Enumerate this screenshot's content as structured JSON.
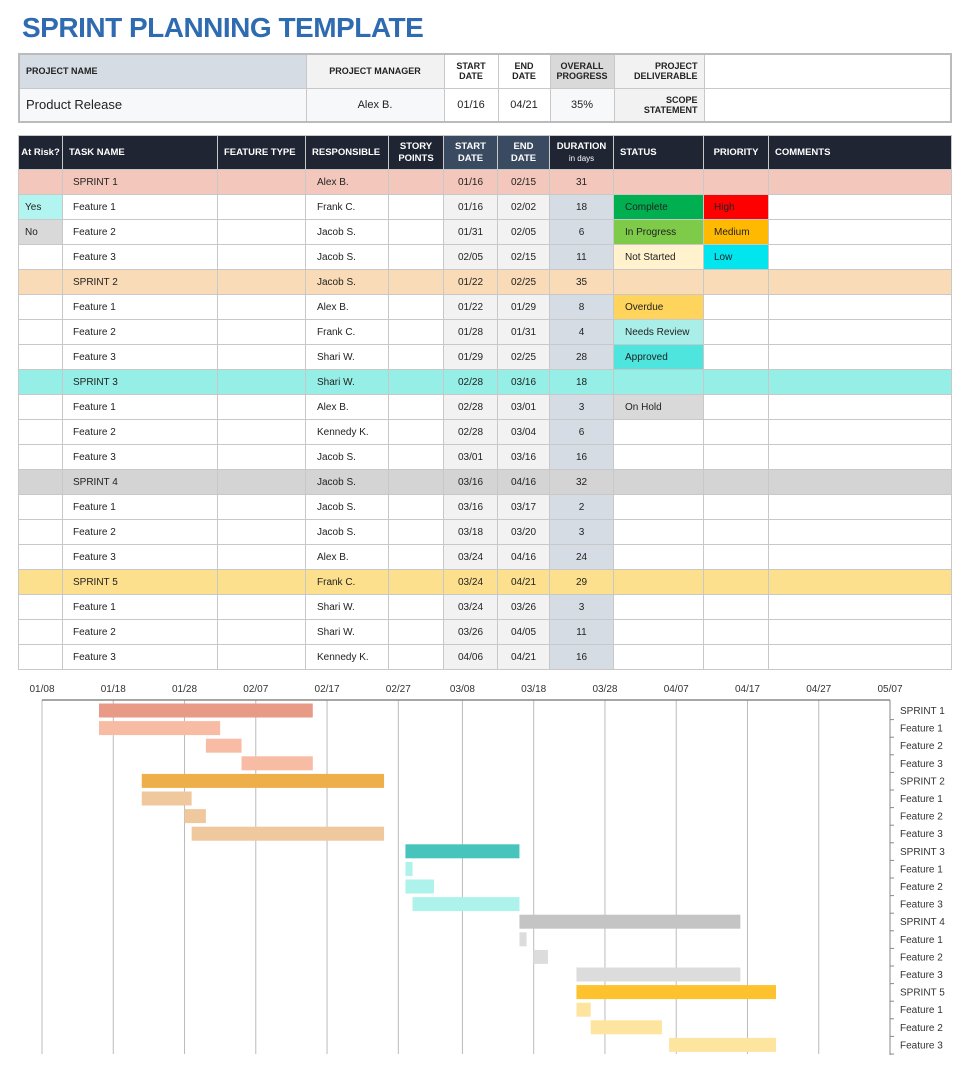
{
  "title": "SPRINT PLANNING TEMPLATE",
  "project": {
    "labels": {
      "name": "PROJECT NAME",
      "manager": "PROJECT MANAGER",
      "start": "START DATE",
      "end": "END DATE",
      "progress": "OVERALL PROGRESS",
      "deliverable": "PROJECT DELIVERABLE",
      "scope": "SCOPE STATEMENT"
    },
    "name": "Product Release",
    "manager": "Alex B.",
    "start": "01/16",
    "end": "04/21",
    "progress": "35%",
    "deliverable": "",
    "scope": ""
  },
  "columns": [
    "At Risk?",
    "TASK NAME",
    "FEATURE TYPE",
    "RESPONSIBLE",
    "STORY POINTS",
    "START DATE",
    "END DATE",
    "DURATION",
    "in days",
    "STATUS",
    "PRIORITY",
    "COMMENTS"
  ],
  "colors": {
    "sprints": [
      {
        "row": "#f4c7bc",
        "bar": "#e89a87",
        "feat": "#f8bba3"
      },
      {
        "row": "#f9dbb7",
        "bar": "#eeaf4a",
        "feat": "#f0c89e"
      },
      {
        "row": "#96efe6",
        "bar": "#47c4bb",
        "feat": "#adf2eb"
      },
      {
        "row": "#d4d4d4",
        "bar": "#c4c4c4",
        "feat": "#dcdcdc"
      },
      {
        "row": "#fde08e",
        "bar": "#fdc22e",
        "feat": "#fde59f"
      }
    ],
    "status": {
      "Complete": "#00b050",
      "In Progress": "#7ecb4a",
      "Not Started": "#fff2cc",
      "Overdue": "#ffd45c",
      "Needs Review": "#a9eee9",
      "Approved": "#4de5de",
      "On Hold": "#d9d9d9"
    },
    "priority": {
      "High": "#ff0000",
      "Medium": "#ffb900",
      "Low": "#00e5ee"
    },
    "risk": {
      "Yes": "#b2f5f0",
      "No": "#d9d9d9"
    }
  },
  "rows": [
    {
      "sprint": 0,
      "is_sprint": true,
      "risk": "",
      "task": "SPRINT 1",
      "type": "",
      "resp": "Alex B.",
      "points": "",
      "start": "01/16",
      "end": "02/15",
      "dur": "31",
      "status": "",
      "priority": "",
      "comments": ""
    },
    {
      "sprint": 0,
      "risk": "Yes",
      "task": "Feature 1",
      "type": "",
      "resp": "Frank C.",
      "points": "",
      "start": "01/16",
      "end": "02/02",
      "dur": "18",
      "status": "Complete",
      "priority": "High",
      "comments": ""
    },
    {
      "sprint": 0,
      "risk": "No",
      "task": "Feature 2",
      "type": "",
      "resp": "Jacob S.",
      "points": "",
      "start": "01/31",
      "end": "02/05",
      "dur": "6",
      "status": "In Progress",
      "priority": "Medium",
      "comments": ""
    },
    {
      "sprint": 0,
      "risk": "",
      "task": "Feature 3",
      "type": "",
      "resp": "Jacob S.",
      "points": "",
      "start": "02/05",
      "end": "02/15",
      "dur": "11",
      "status": "Not Started",
      "priority": "Low",
      "comments": ""
    },
    {
      "sprint": 1,
      "is_sprint": true,
      "risk": "",
      "task": "SPRINT 2",
      "type": "",
      "resp": "Jacob S.",
      "points": "",
      "start": "01/22",
      "end": "02/25",
      "dur": "35",
      "status": "",
      "priority": "",
      "comments": ""
    },
    {
      "sprint": 1,
      "risk": "",
      "task": "Feature 1",
      "type": "",
      "resp": "Alex B.",
      "points": "",
      "start": "01/22",
      "end": "01/29",
      "dur": "8",
      "status": "Overdue",
      "priority": "",
      "comments": ""
    },
    {
      "sprint": 1,
      "risk": "",
      "task": "Feature 2",
      "type": "",
      "resp": "Frank C.",
      "points": "",
      "start": "01/28",
      "end": "01/31",
      "dur": "4",
      "status": "Needs Review",
      "priority": "",
      "comments": ""
    },
    {
      "sprint": 1,
      "risk": "",
      "task": "Feature 3",
      "type": "",
      "resp": "Shari W.",
      "points": "",
      "start": "01/29",
      "end": "02/25",
      "dur": "28",
      "status": "Approved",
      "priority": "",
      "comments": ""
    },
    {
      "sprint": 2,
      "is_sprint": true,
      "risk": "",
      "task": "SPRINT 3",
      "type": "",
      "resp": "Shari W.",
      "points": "",
      "start": "02/28",
      "end": "03/16",
      "dur": "18",
      "status": "",
      "priority": "",
      "comments": ""
    },
    {
      "sprint": 2,
      "risk": "",
      "task": "Feature 1",
      "type": "",
      "resp": "Alex B.",
      "points": "",
      "start": "02/28",
      "end": "03/01",
      "dur": "3",
      "status": "On Hold",
      "priority": "",
      "comments": ""
    },
    {
      "sprint": 2,
      "risk": "",
      "task": "Feature 2",
      "type": "",
      "resp": "Kennedy K.",
      "points": "",
      "start": "02/28",
      "end": "03/04",
      "dur": "6",
      "status": "",
      "priority": "",
      "comments": ""
    },
    {
      "sprint": 2,
      "risk": "",
      "task": "Feature 3",
      "type": "",
      "resp": "Jacob S.",
      "points": "",
      "start": "03/01",
      "end": "03/16",
      "dur": "16",
      "status": "",
      "priority": "",
      "comments": ""
    },
    {
      "sprint": 3,
      "is_sprint": true,
      "risk": "",
      "task": "SPRINT 4",
      "type": "",
      "resp": "Jacob S.",
      "points": "",
      "start": "03/16",
      "end": "04/16",
      "dur": "32",
      "status": "",
      "priority": "",
      "comments": ""
    },
    {
      "sprint": 3,
      "risk": "",
      "task": "Feature 1",
      "type": "",
      "resp": "Jacob S.",
      "points": "",
      "start": "03/16",
      "end": "03/17",
      "dur": "2",
      "status": "",
      "priority": "",
      "comments": ""
    },
    {
      "sprint": 3,
      "risk": "",
      "task": "Feature 2",
      "type": "",
      "resp": "Jacob S.",
      "points": "",
      "start": "03/18",
      "end": "03/20",
      "dur": "3",
      "status": "",
      "priority": "",
      "comments": ""
    },
    {
      "sprint": 3,
      "risk": "",
      "task": "Feature 3",
      "type": "",
      "resp": "Alex B.",
      "points": "",
      "start": "03/24",
      "end": "04/16",
      "dur": "24",
      "status": "",
      "priority": "",
      "comments": ""
    },
    {
      "sprint": 4,
      "is_sprint": true,
      "risk": "",
      "task": "SPRINT 5",
      "type": "",
      "resp": "Frank C.",
      "points": "",
      "start": "03/24",
      "end": "04/21",
      "dur": "29",
      "status": "",
      "priority": "",
      "comments": ""
    },
    {
      "sprint": 4,
      "risk": "",
      "task": "Feature 1",
      "type": "",
      "resp": "Shari W.",
      "points": "",
      "start": "03/24",
      "end": "03/26",
      "dur": "3",
      "status": "",
      "priority": "",
      "comments": ""
    },
    {
      "sprint": 4,
      "risk": "",
      "task": "Feature 2",
      "type": "",
      "resp": "Shari W.",
      "points": "",
      "start": "03/26",
      "end": "04/05",
      "dur": "11",
      "status": "",
      "priority": "",
      "comments": ""
    },
    {
      "sprint": 4,
      "risk": "",
      "task": "Feature 3",
      "type": "",
      "resp": "Kennedy K.",
      "points": "",
      "start": "04/06",
      "end": "04/21",
      "dur": "16",
      "status": "",
      "priority": "",
      "comments": ""
    }
  ],
  "chart_data": {
    "type": "gantt",
    "x_ticks": [
      "01/08",
      "01/18",
      "01/28",
      "02/07",
      "02/17",
      "02/27",
      "03/08",
      "03/18",
      "03/28",
      "04/07",
      "04/17",
      "04/27",
      "05/07"
    ],
    "xlim": [
      "01/08",
      "05/07"
    ],
    "grid": true,
    "note_data_source": "rows"
  }
}
